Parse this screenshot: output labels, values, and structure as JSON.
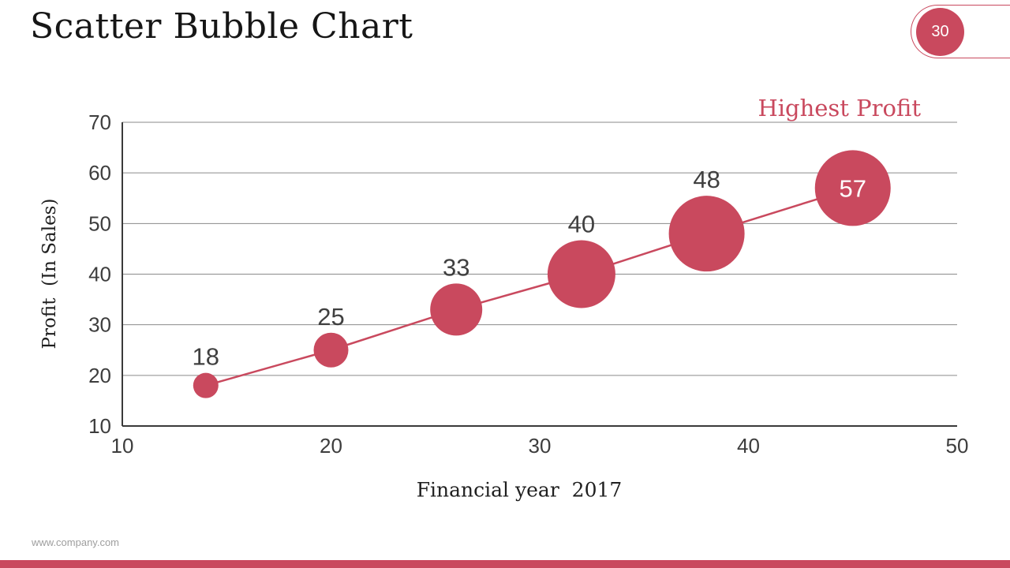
{
  "slide": {
    "title": "Scatter Bubble Chart",
    "page_number": "30",
    "footer_url": "www.company.com"
  },
  "colors": {
    "accent": "#c9495e",
    "grid": "#8a8a8a",
    "axis": "#3a3a3a",
    "tick_label": "#3d3d3d",
    "data_label": "#404040",
    "title": "#161616"
  },
  "chart_data": {
    "type": "scatter",
    "subtype": "bubble",
    "title": "",
    "annotation": "Highest Profit",
    "xlabel": "Financial year  2017",
    "ylabel": "Profit  (In Sales)",
    "xlim": [
      10,
      50
    ],
    "ylim": [
      10,
      70
    ],
    "x_ticks": [
      10,
      20,
      30,
      40,
      50
    ],
    "y_ticks": [
      10,
      20,
      30,
      40,
      50,
      60,
      70
    ],
    "grid": true,
    "legend": false,
    "series": [
      {
        "name": "Profit",
        "color": "#c9495e",
        "trendline": true,
        "points": [
          {
            "x": 14,
            "y": 18,
            "r": 16,
            "label": "18",
            "label_inside": false
          },
          {
            "x": 20,
            "y": 25,
            "r": 22,
            "label": "25",
            "label_inside": false
          },
          {
            "x": 26,
            "y": 33,
            "r": 33,
            "label": "33",
            "label_inside": false
          },
          {
            "x": 32,
            "y": 40,
            "r": 43,
            "label": "40",
            "label_inside": false
          },
          {
            "x": 38,
            "y": 48,
            "r": 48,
            "label": "48",
            "label_inside": false
          },
          {
            "x": 45,
            "y": 57,
            "r": 48,
            "label": "57",
            "label_inside": true
          }
        ]
      }
    ]
  }
}
